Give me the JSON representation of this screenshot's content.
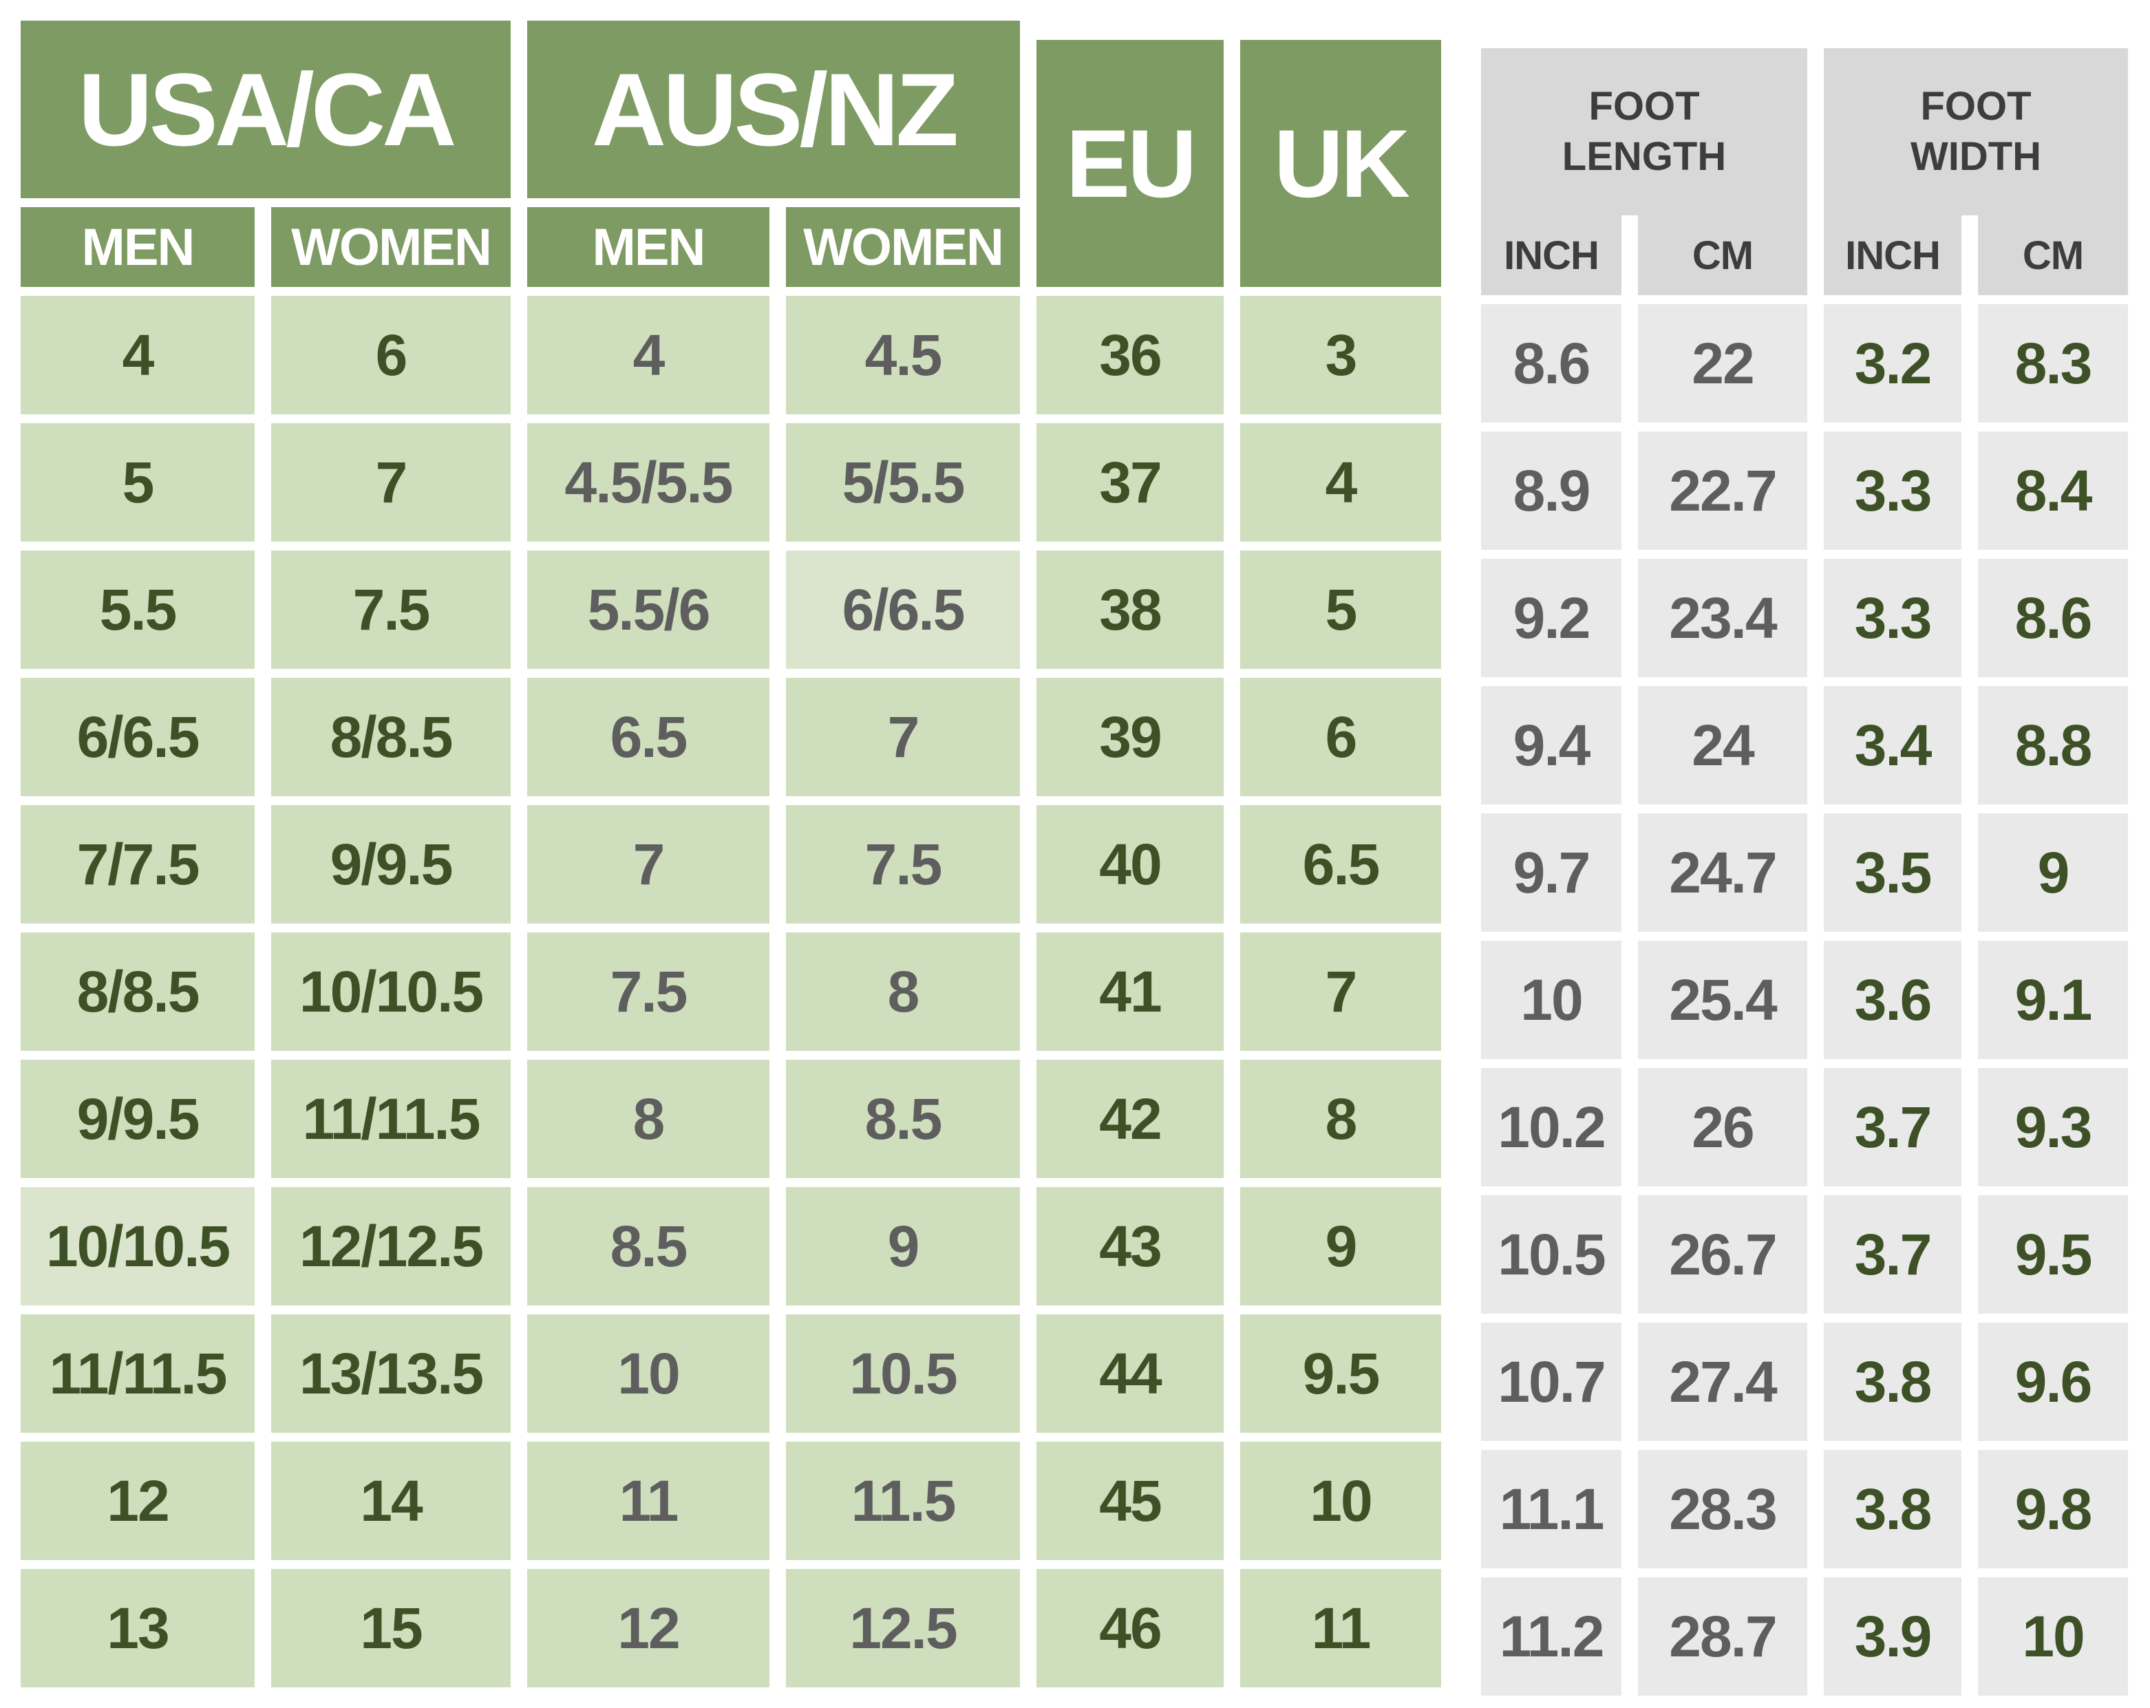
{
  "colors": {
    "header_green": "#7d9b62",
    "cell_green": "#cfdebc",
    "cell_green_light": "#dbe5cd",
    "header_gray": "#d8d8d8",
    "cell_gray": "#e9e9e9",
    "text_white": "#ffffff",
    "text_dark_green": "#3e5126",
    "text_gray": "#5e5e5e",
    "text_dark_gray": "#3d3d3d"
  },
  "chart_data": {
    "type": "table",
    "column_groups": [
      {
        "label": "USA/CA",
        "columns": [
          "MEN",
          "WOMEN"
        ]
      },
      {
        "label": "AUS/NZ",
        "columns": [
          "MEN",
          "WOMEN"
        ]
      },
      {
        "label": "EU",
        "columns": []
      },
      {
        "label": "UK",
        "columns": []
      },
      {
        "label": "FOOT LENGTH",
        "columns": [
          "INCH",
          "CM"
        ]
      },
      {
        "label": "FOOT WIDTH",
        "columns": [
          "INCH",
          "CM"
        ]
      }
    ],
    "rows": [
      [
        "4",
        "6",
        "4",
        "4.5",
        "36",
        "3",
        "8.6",
        "22",
        "3.2",
        "8.3"
      ],
      [
        "5",
        "7",
        "4.5/5.5",
        "5/5.5",
        "37",
        "4",
        "8.9",
        "22.7",
        "3.3",
        "8.4"
      ],
      [
        "5.5",
        "7.5",
        "5.5/6",
        "6/6.5",
        "38",
        "5",
        "9.2",
        "23.4",
        "3.3",
        "8.6"
      ],
      [
        "6/6.5",
        "8/8.5",
        "6.5",
        "7",
        "39",
        "6",
        "9.4",
        "24",
        "3.4",
        "8.8"
      ],
      [
        "7/7.5",
        "9/9.5",
        "7",
        "7.5",
        "40",
        "6.5",
        "9.7",
        "24.7",
        "3.5",
        "9"
      ],
      [
        "8/8.5",
        "10/10.5",
        "7.5",
        "8",
        "41",
        "7",
        "10",
        "25.4",
        "3.6",
        "9.1"
      ],
      [
        "9/9.5",
        "11/11.5",
        "8",
        "8.5",
        "42",
        "8",
        "10.2",
        "26",
        "3.7",
        "9.3"
      ],
      [
        "10/10.5",
        "12/12.5",
        "8.5",
        "9",
        "43",
        "9",
        "10.5",
        "26.7",
        "3.7",
        "9.5"
      ],
      [
        "11/11.5",
        "13/13.5",
        "10",
        "10.5",
        "44",
        "9.5",
        "10.7",
        "27.4",
        "3.8",
        "9.6"
      ],
      [
        "12",
        "14",
        "11",
        "11.5",
        "45",
        "10",
        "11.1",
        "28.3",
        "3.8",
        "9.8"
      ],
      [
        "13",
        "15",
        "12",
        "12.5",
        "46",
        "11",
        "11.2",
        "28.7",
        "3.9",
        "10"
      ]
    ]
  }
}
